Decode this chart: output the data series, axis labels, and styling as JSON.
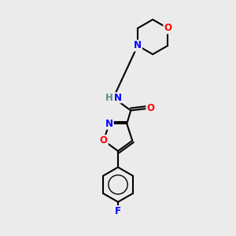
{
  "background_color": "#ebebeb",
  "bond_color": "#000000",
  "atom_colors": {
    "N": "#0000FF",
    "O": "#FF0000",
    "F": "#0000FF",
    "H": "#5a8a8a"
  },
  "figsize": [
    3.0,
    3.0
  ],
  "dpi": 100
}
